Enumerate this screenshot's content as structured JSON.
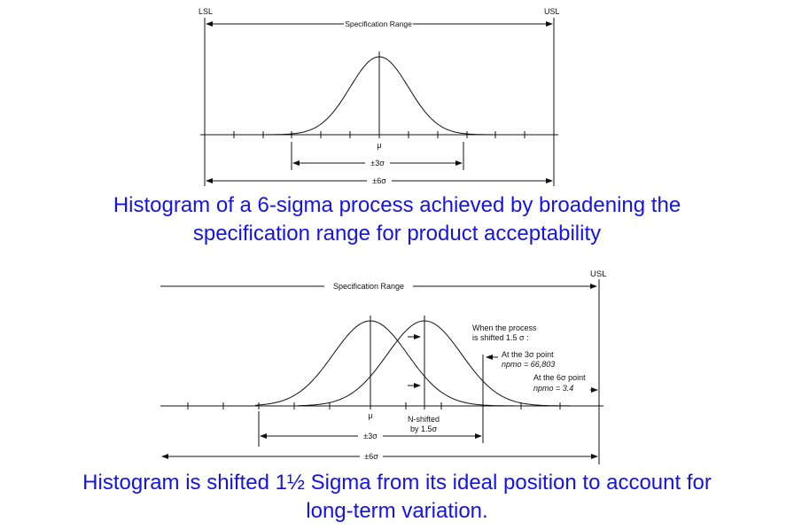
{
  "colors": {
    "ink": "#111111",
    "caption": "#1414e6"
  },
  "fig1": {
    "lsl": "LSL",
    "usl": "USL",
    "spec_range": "Specification Range",
    "mu": "μ",
    "pm3": "±3σ",
    "pm6": "±6σ",
    "caption_line1": "Histogram of a 6-sigma process achieved by broadening the",
    "caption_line2": "specification range for product acceptability"
  },
  "fig2": {
    "usl": "USL",
    "spec_range": "Specification Range",
    "mu": "μ",
    "nshift_1": "N-shifted",
    "nshift_2": "by 1.5σ",
    "pm3": "±3σ",
    "pm6": "±6σ",
    "note_1": "When the process",
    "note_2": "is shifted 1.5 σ :",
    "at3_1": "At the 3σ point",
    "at3_2": "npmo = 66,803",
    "at6_1": "At the 6σ point",
    "at6_2": "npmo = 3.4",
    "caption_line1": "Histogram is shifted 1½ Sigma from its ideal position to account for",
    "caption_line2": "long-term variation."
  }
}
